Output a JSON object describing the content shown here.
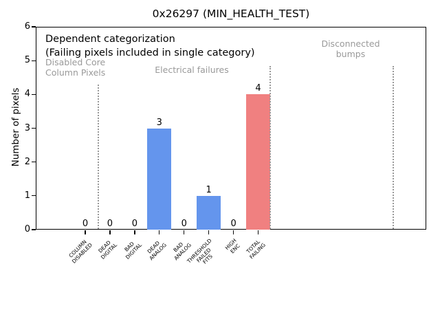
{
  "chart_data": {
    "type": "bar",
    "title": "0x26297 (MIN_HEALTH_TEST)",
    "xlabel": "",
    "ylabel": "Number of pixels",
    "ylim": [
      0,
      6
    ],
    "yticks": [
      0,
      1,
      2,
      3,
      4,
      5,
      6
    ],
    "grid": false,
    "legend": false,
    "categories": [
      "COLUMN DISABLED",
      "DEAD DIGITAL",
      "BAD DIGITAL",
      "DEAD ANALOG",
      "BAD ANALOG",
      "THRESHOLD FAILED FITS",
      "HIGH ENC",
      "TOTAL FAILING"
    ],
    "category_label_lines": [
      [
        "COLUMN",
        "DISABLED"
      ],
      [
        "DEAD",
        "DIGITAL"
      ],
      [
        "BAD",
        "DIGITAL"
      ],
      [
        "DEAD",
        "ANALOG"
      ],
      [
        "BAD",
        "ANALOG"
      ],
      [
        "THRESHOLD",
        "FAILED",
        "FITS"
      ],
      [
        "HIGH",
        "ENC"
      ],
      [
        "TOTAL",
        "FAILING"
      ]
    ],
    "values": [
      0,
      0,
      0,
      3,
      0,
      1,
      0,
      4
    ],
    "value_labels": [
      "0",
      "0",
      "0",
      "3",
      "0",
      "1",
      "0",
      "4"
    ],
    "bar_colors": [
      "#6495ED",
      "#6495ED",
      "#6495ED",
      "#6495ED",
      "#6495ED",
      "#6495ED",
      "#6495ED",
      "#F08080"
    ],
    "annotations": {
      "heading_line1": "Dependent categorization",
      "heading_line2": "(Failing pixels included in single category)",
      "section_disabled_core": "Disabled Core\nColumn Pixels",
      "section_electrical": "Electrical failures",
      "section_disconnected": "Disconnected\nbumps"
    },
    "colors": {
      "bar_blue": "#6495ED",
      "bar_red": "#F08080",
      "annotation_gray": "#999999",
      "separator_gray": "#999999",
      "axis_black": "#000000"
    }
  }
}
